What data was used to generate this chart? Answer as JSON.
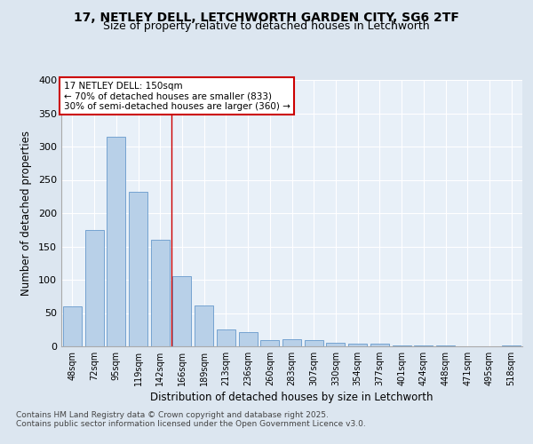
{
  "title_line1": "17, NETLEY DELL, LETCHWORTH GARDEN CITY, SG6 2TF",
  "title_line2": "Size of property relative to detached houses in Letchworth",
  "xlabel": "Distribution of detached houses by size in Letchworth",
  "ylabel": "Number of detached properties",
  "categories": [
    "48sqm",
    "72sqm",
    "95sqm",
    "119sqm",
    "142sqm",
    "166sqm",
    "189sqm",
    "213sqm",
    "236sqm",
    "260sqm",
    "283sqm",
    "307sqm",
    "330sqm",
    "354sqm",
    "377sqm",
    "401sqm",
    "424sqm",
    "448sqm",
    "471sqm",
    "495sqm",
    "518sqm"
  ],
  "values": [
    60,
    175,
    315,
    232,
    160,
    105,
    62,
    26,
    22,
    10,
    11,
    10,
    6,
    4,
    4,
    1,
    1,
    2,
    0,
    0,
    2
  ],
  "bar_color": "#b8d0e8",
  "bar_edge_color": "#6699cc",
  "vline_x": 4.5,
  "vline_color": "#cc0000",
  "annotation_title": "17 NETLEY DELL: 150sqm",
  "annotation_line1": "← 70% of detached houses are smaller (833)",
  "annotation_line2": "30% of semi-detached houses are larger (360) →",
  "annotation_box_color": "#cc0000",
  "ylim": [
    0,
    400
  ],
  "yticks": [
    0,
    50,
    100,
    150,
    200,
    250,
    300,
    350,
    400
  ],
  "footnote_line1": "Contains HM Land Registry data © Crown copyright and database right 2025.",
  "footnote_line2": "Contains public sector information licensed under the Open Government Licence v3.0.",
  "bg_color": "#dce6f0",
  "plot_bg_color": "#e8f0f8"
}
